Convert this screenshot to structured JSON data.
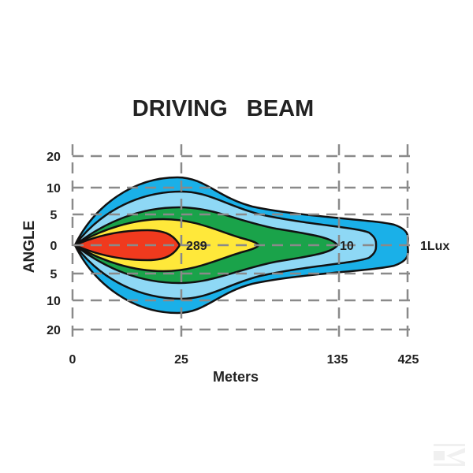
{
  "title": "DRIVING   BEAM",
  "y_axis": {
    "label": "ANGLE",
    "ticks": [
      "20",
      "10",
      "5",
      "0",
      "5",
      "10",
      "20"
    ]
  },
  "x_axis": {
    "label": "Meters",
    "ticks": [
      "0",
      "25",
      "135",
      "425"
    ]
  },
  "annotations": {
    "inner_value": "289",
    "mid_value": "10",
    "outer_value": "1Lux"
  },
  "colors": {
    "outer": "#1ab0e8",
    "light_blue": "#8ed8f5",
    "green": "#1aa34a",
    "yellow": "#ffe83a",
    "red": "#f03a1e",
    "grid": "#8a8a8a",
    "outline": "#111111"
  },
  "watermark": "K"
}
